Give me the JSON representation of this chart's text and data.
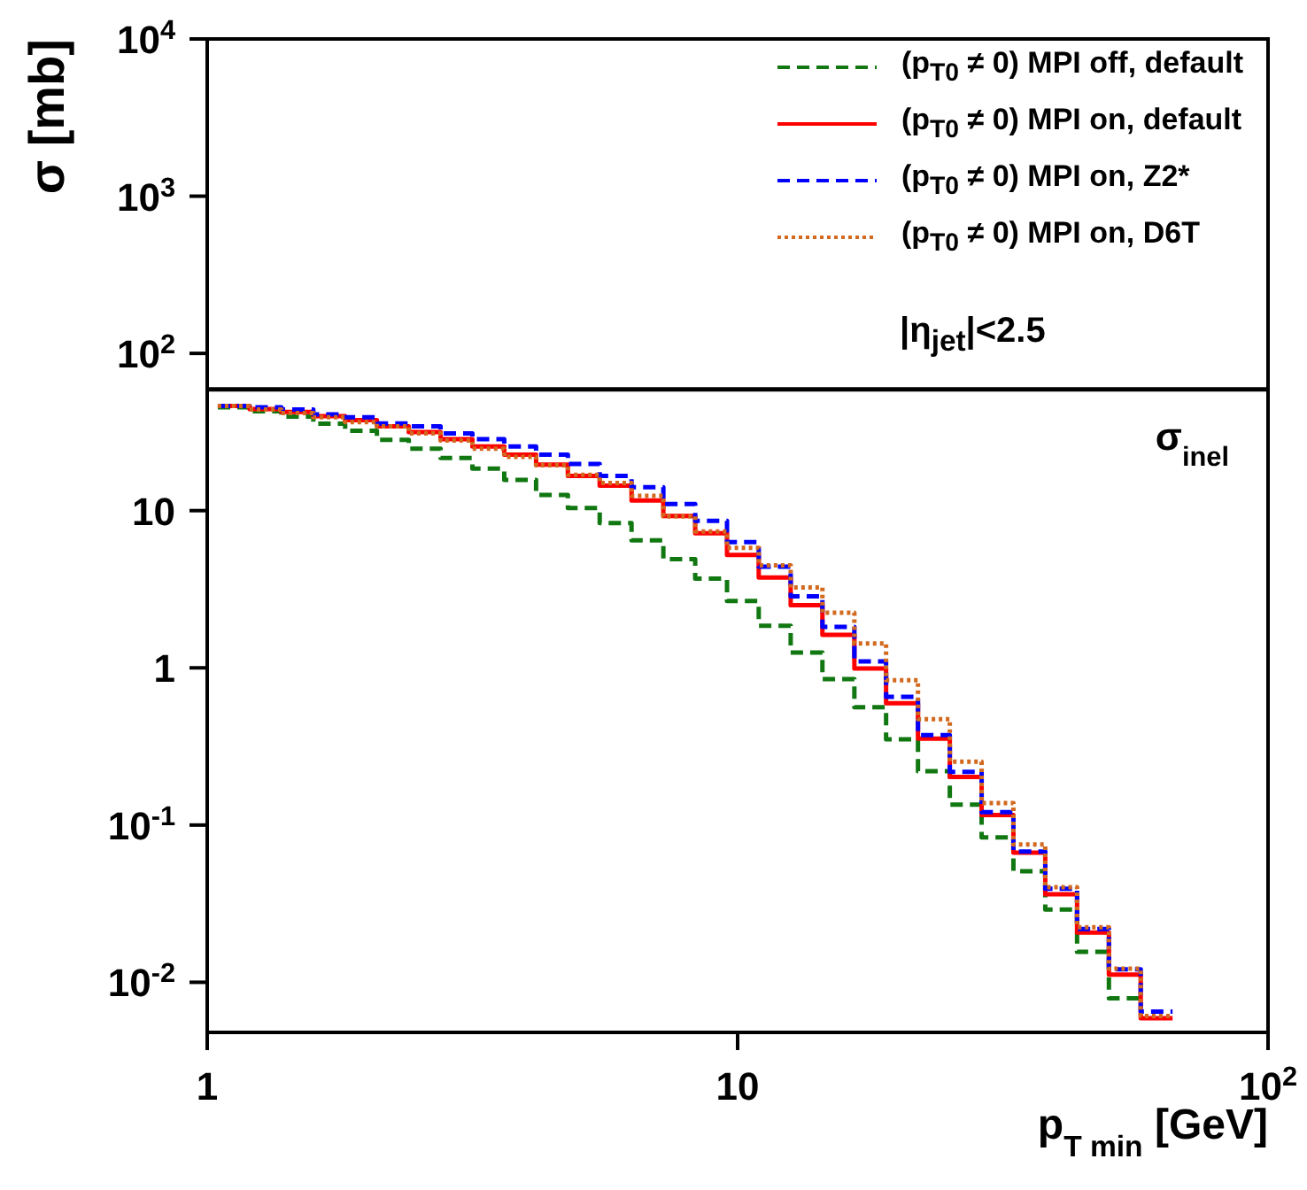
{
  "chart_data": {
    "type": "histogram",
    "xlabel": "p$_{T min}$ [GeV]",
    "ylabel": "σ [mb]",
    "log": "xy",
    "legend": "top right",
    "annotations": [
      "|η$_{jet}$|<2.5"
    ],
    "bins": [
      1.047,
      1.202,
      1.38,
      1.585,
      1.82,
      2.089,
      2.399,
      2.754,
      3.162,
      3.631,
      4.169,
      4.786,
      5.495,
      6.31,
      7.244,
      8.318,
      9.55,
      10.96,
      12.59,
      14.45,
      16.6,
      19.05,
      21.88,
      25.12,
      28.84,
      33.11,
      38.02,
      43.65,
      50.12,
      57.54,
      66.07
    ],
    "xlim": [
      1,
      100
    ],
    "xticks": [
      1,
      10,
      {
        "value": 100,
        "label": "10$^{2}$"
      }
    ],
    "ylim": [
      0.0048,
      10000
    ],
    "yticks": [
      {
        "value": 0.01,
        "label": "10$^{-2}$"
      },
      {
        "value": 0.1,
        "label": "10$^{-1}$"
      },
      1,
      10,
      {
        "value": 100,
        "label": "10$^{2}$"
      },
      {
        "value": 1000,
        "label": "10$^{3}$"
      },
      {
        "value": 10000,
        "label": "10$^{4}$"
      }
    ],
    "ref_lines": [
      {
        "axis": "y",
        "value": 59,
        "label": "σ$_{inel}$",
        "color": "#000000"
      }
    ],
    "series": [
      {
        "name": "(p$_{T0}$ ≠ 0) MPI off, default",
        "color": "#117711",
        "line_style": "dashed",
        "bins": [
          1.047,
          1.202,
          1.38,
          1.585,
          1.82,
          2.089,
          2.399,
          2.754,
          3.162,
          3.631,
          4.169,
          4.786,
          5.495,
          6.31,
          7.244,
          8.318,
          9.55,
          10.96,
          12.59,
          14.45,
          16.6,
          19.05,
          21.88,
          25.12,
          28.84,
          33.11,
          38.02,
          43.65,
          50.12,
          57.54
        ],
        "values": [
          45.4,
          42.8,
          39.6,
          35.7,
          32.2,
          28.2,
          24.8,
          21.6,
          18.5,
          15.7,
          12.6,
          10.4,
          8.34,
          6.48,
          4.91,
          3.69,
          2.66,
          1.85,
          1.25,
          0.849,
          0.561,
          0.351,
          0.22,
          0.135,
          0.0834,
          0.0509,
          0.029,
          0.0156,
          0.0079
        ]
      },
      {
        "name": "(p$_{T0}$ ≠ 0) MPI on, default",
        "color": "#ff0000",
        "line_style": "solid",
        "values": [
          46.3,
          44.3,
          42.4,
          39.9,
          37.6,
          34.4,
          31.6,
          28.5,
          25.6,
          22.7,
          19.6,
          16.6,
          14.4,
          11.6,
          9.25,
          7.19,
          5.22,
          3.76,
          2.5,
          1.62,
          0.99,
          0.595,
          0.354,
          0.202,
          0.116,
          0.0667,
          0.0363,
          0.0207,
          0.0112,
          0.0059
        ]
      },
      {
        "name": "(p$_{T0}$ ≠ 0) MPI on, Z2*",
        "color": "#0000ff",
        "line_style": "dashed",
        "values": [
          46.3,
          45.4,
          44,
          40.9,
          39.2,
          35.9,
          34.4,
          31,
          28.5,
          25.6,
          22.7,
          19.8,
          16.6,
          14.1,
          11,
          8.62,
          6.31,
          4.4,
          2.85,
          1.82,
          1.1,
          0.655,
          0.373,
          0.218,
          0.121,
          0.0678,
          0.0393,
          0.0218,
          0.0121,
          0.0065
        ]
      },
      {
        "name": "(p$_{T0}$ ≠ 0) MPI on, D6T",
        "color": "#d2691e",
        "line_style": "dotted",
        "values": [
          46.3,
          44,
          41.7,
          39.2,
          36.6,
          34.4,
          31,
          27.9,
          24.8,
          22,
          19.4,
          16.9,
          15,
          12.4,
          9.2,
          7.38,
          5.79,
          4.48,
          3.24,
          2.24,
          1.43,
          0.834,
          0.471,
          0.253,
          0.138,
          0.0752,
          0.0403,
          0.0224,
          0.0122,
          0.0061
        ]
      }
    ]
  }
}
